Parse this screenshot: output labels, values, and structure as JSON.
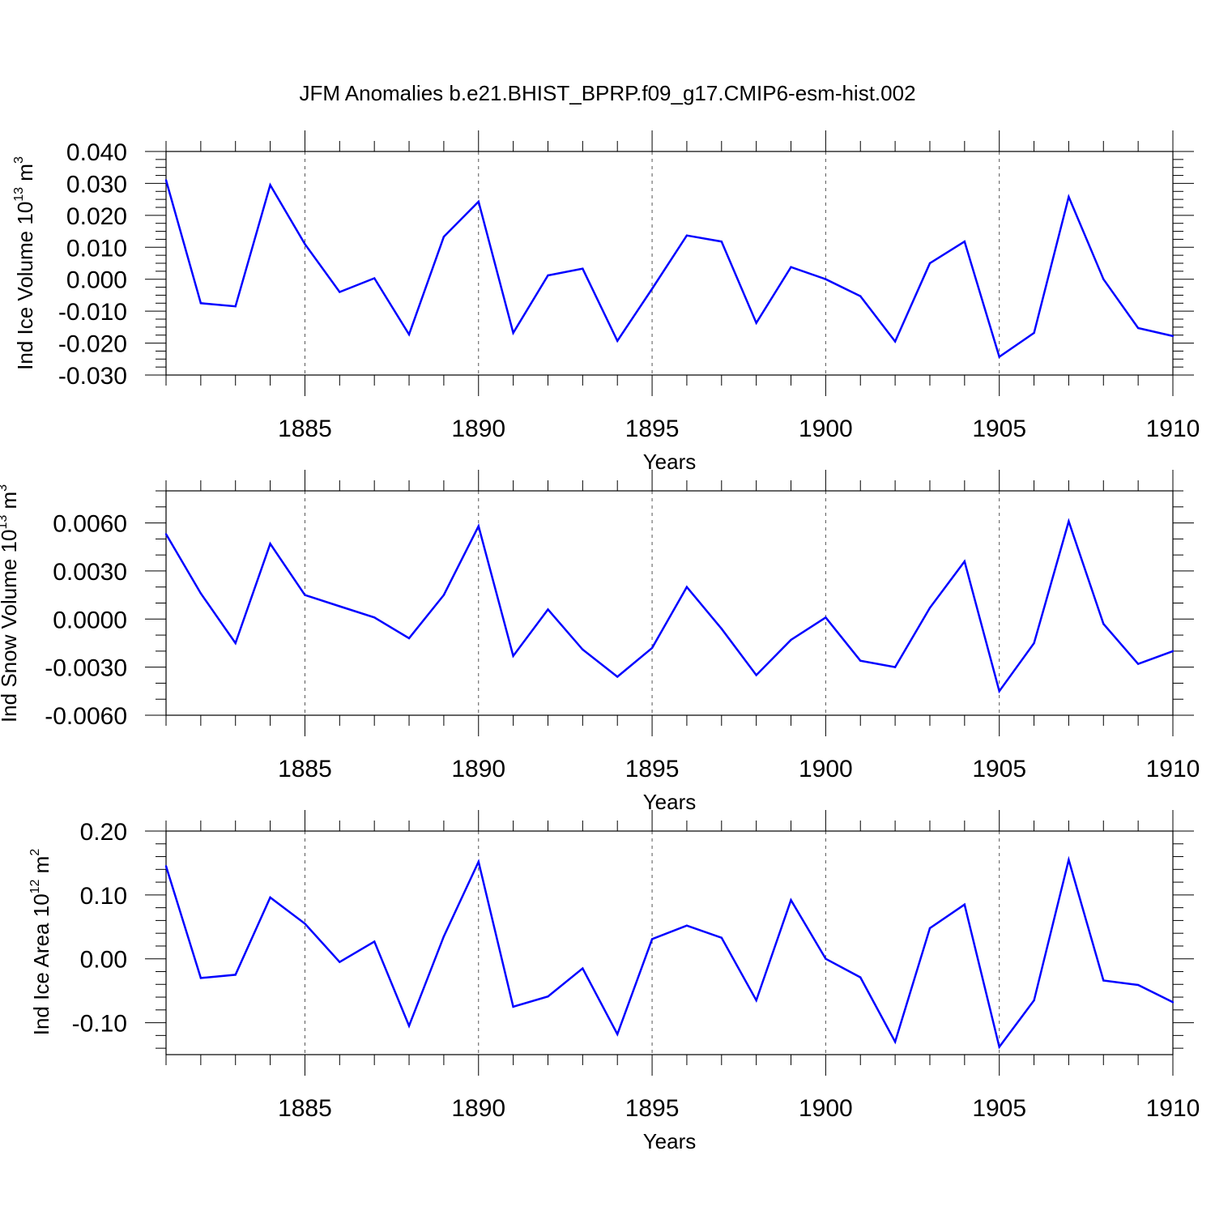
{
  "figure": {
    "title": "JFM Anomalies b.e21.BHIST_BPRP.f09_g17.CMIP6-esm-hist.002"
  },
  "colors": {
    "line": "#0000ff",
    "axis": "#000000",
    "gridline": "#555555"
  },
  "chart_data": [
    {
      "type": "line",
      "ylabel": "Ind Ice Volume 10",
      "ylabel_exp": "13",
      "ylabel_unit": " m",
      "ylabel_unit_exp": "3",
      "xlabel": "Years",
      "xlim": [
        1881,
        1910
      ],
      "ylim": [
        -0.03,
        0.04
      ],
      "yticks": [
        "0.040",
        "0.030",
        "0.020",
        "0.010",
        "0.000",
        "-0.010",
        "-0.020",
        "-0.030"
      ],
      "xticks": [
        "1885",
        "1890",
        "1895",
        "1900",
        "1905",
        "1910"
      ],
      "grid": "dashed vertical at major x ticks",
      "x": [
        1881,
        1882,
        1883,
        1884,
        1885,
        1886,
        1887,
        1888,
        1889,
        1890,
        1891,
        1892,
        1893,
        1894,
        1895,
        1896,
        1897,
        1898,
        1899,
        1900,
        1901,
        1902,
        1903,
        1904,
        1905,
        1906,
        1907,
        1908,
        1909,
        1910
      ],
      "values": [
        0.031,
        -0.0075,
        -0.0085,
        0.0295,
        0.011,
        -0.004,
        0.0003,
        -0.0173,
        0.0133,
        0.0243,
        -0.0168,
        0.0012,
        0.0033,
        -0.0193,
        -0.003,
        0.0137,
        0.0118,
        -0.0137,
        0.0038,
        0.0,
        -0.0053,
        -0.0195,
        0.005,
        0.0118,
        -0.0243,
        -0.0168,
        0.0258,
        0.0,
        -0.0153,
        -0.0178
      ]
    },
    {
      "type": "line",
      "ylabel": "Ind Snow Volume 10",
      "ylabel_exp": "13",
      "ylabel_unit": " m",
      "ylabel_unit_exp": "3",
      "xlabel": "Years",
      "xlim": [
        1881,
        1910
      ],
      "ylim": [
        -0.006,
        0.008
      ],
      "yticks": [
        "0.0060",
        "0.0030",
        "0.0000",
        "-0.0030",
        "-0.0060"
      ],
      "xticks": [
        "1885",
        "1890",
        "1895",
        "1900",
        "1905",
        "1910"
      ],
      "grid": "dashed vertical at major x ticks",
      "x": [
        1881,
        1882,
        1883,
        1884,
        1885,
        1886,
        1887,
        1888,
        1889,
        1890,
        1891,
        1892,
        1893,
        1894,
        1895,
        1896,
        1897,
        1898,
        1899,
        1900,
        1901,
        1902,
        1903,
        1904,
        1905,
        1906,
        1907,
        1908,
        1909,
        1910
      ],
      "values": [
        0.0053,
        0.0016,
        -0.0015,
        0.0047,
        0.0015,
        0.0008,
        0.0001,
        -0.0012,
        0.0015,
        0.0058,
        -0.0023,
        0.0006,
        -0.0019,
        -0.0036,
        -0.0018,
        0.002,
        -0.0006,
        -0.0035,
        -0.0013,
        0.0001,
        -0.0026,
        -0.003,
        0.0007,
        0.0036,
        -0.0045,
        -0.0015,
        0.0061,
        -0.0003,
        -0.0028,
        -0.002
      ]
    },
    {
      "type": "line",
      "ylabel": "Ind Ice Area 10",
      "ylabel_exp": "12",
      "ylabel_unit": " m",
      "ylabel_unit_exp": "2",
      "xlabel": "Years",
      "xlim": [
        1881,
        1910
      ],
      "ylim": [
        -0.15,
        0.2
      ],
      "yticks": [
        "0.20",
        "0.10",
        "0.00",
        "-0.10"
      ],
      "xticks": [
        "1885",
        "1890",
        "1895",
        "1900",
        "1905",
        "1910"
      ],
      "grid": "dashed vertical at major x ticks",
      "x": [
        1881,
        1882,
        1883,
        1884,
        1885,
        1886,
        1887,
        1888,
        1889,
        1890,
        1891,
        1892,
        1893,
        1894,
        1895,
        1896,
        1897,
        1898,
        1899,
        1900,
        1901,
        1902,
        1903,
        1904,
        1905,
        1906,
        1907,
        1908,
        1909,
        1910
      ],
      "values": [
        0.145,
        -0.03,
        -0.025,
        0.096,
        0.055,
        -0.005,
        0.027,
        -0.105,
        0.035,
        0.152,
        -0.075,
        -0.059,
        -0.015,
        -0.118,
        0.031,
        0.052,
        0.033,
        -0.065,
        0.092,
        0.0,
        -0.029,
        -0.13,
        0.048,
        0.085,
        -0.138,
        -0.065,
        0.155,
        -0.034,
        -0.041,
        -0.068
      ]
    }
  ]
}
